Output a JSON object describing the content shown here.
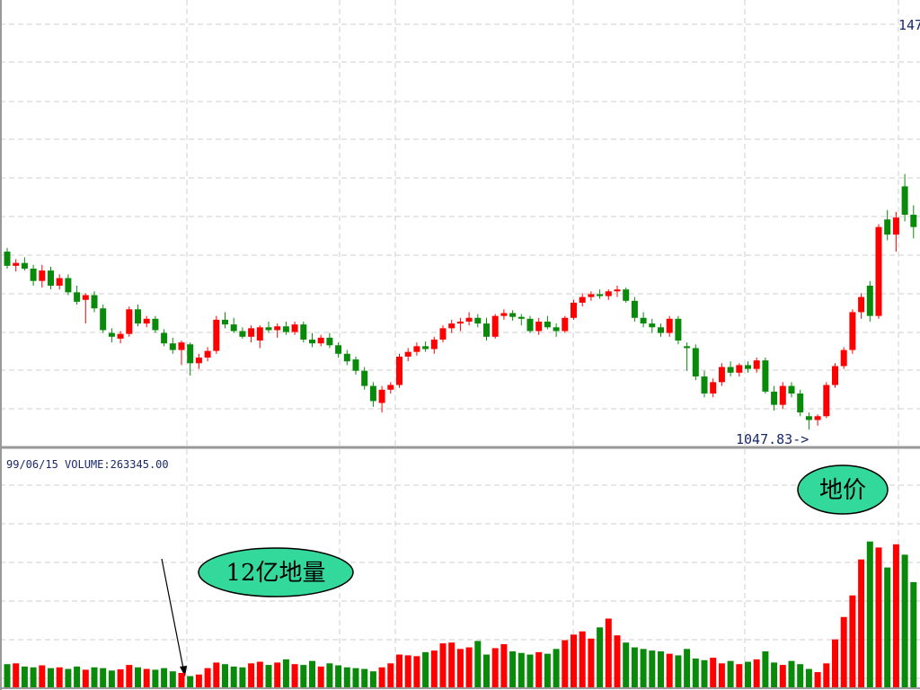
{
  "chart_data": {
    "type": "candlestick",
    "top_label": "147",
    "low_label": "1047.83->",
    "status": "99/06/15 VOLUME:263345.00",
    "annotations": [
      "地价",
      "12亿地量"
    ],
    "up_color": "#ff0000",
    "down_color": "#0a8a0a",
    "ylim": [
      1029,
      1502
    ],
    "vlim": [
      0,
      596000
    ],
    "ohlc": [
      [
        1236,
        1240,
        1218,
        1221
      ],
      [
        1221,
        1228,
        1215,
        1224
      ],
      [
        1224,
        1230,
        1216,
        1218
      ],
      [
        1218,
        1222,
        1200,
        1205
      ],
      [
        1205,
        1222,
        1198,
        1216
      ],
      [
        1216,
        1220,
        1196,
        1200
      ],
      [
        1200,
        1212,
        1196,
        1208
      ],
      [
        1208,
        1212,
        1190,
        1193
      ],
      [
        1193,
        1200,
        1180,
        1183
      ],
      [
        1185,
        1192,
        1160,
        1190
      ],
      [
        1190,
        1194,
        1172,
        1176
      ],
      [
        1176,
        1180,
        1150,
        1153
      ],
      [
        1150,
        1155,
        1140,
        1146
      ],
      [
        1144,
        1152,
        1139,
        1149
      ],
      [
        1149,
        1178,
        1146,
        1175
      ],
      [
        1175,
        1180,
        1157,
        1160
      ],
      [
        1160,
        1168,
        1156,
        1165
      ],
      [
        1165,
        1168,
        1150,
        1153
      ],
      [
        1150,
        1154,
        1136,
        1139
      ],
      [
        1139,
        1145,
        1128,
        1132
      ],
      [
        1132,
        1142,
        1116,
        1140
      ],
      [
        1138,
        1140,
        1105,
        1118
      ],
      [
        1118,
        1128,
        1112,
        1124
      ],
      [
        1124,
        1135,
        1120,
        1131
      ],
      [
        1131,
        1168,
        1128,
        1164
      ],
      [
        1164,
        1172,
        1155,
        1159
      ],
      [
        1159,
        1166,
        1150,
        1152
      ],
      [
        1152,
        1156,
        1144,
        1146
      ],
      [
        1146,
        1158,
        1140,
        1155
      ],
      [
        1142,
        1158,
        1134,
        1156
      ],
      [
        1156,
        1162,
        1150,
        1153
      ],
      [
        1153,
        1160,
        1145,
        1157
      ],
      [
        1157,
        1162,
        1148,
        1151
      ],
      [
        1151,
        1162,
        1148,
        1159
      ],
      [
        1159,
        1162,
        1140,
        1143
      ],
      [
        1143,
        1150,
        1135,
        1139
      ],
      [
        1139,
        1148,
        1136,
        1145
      ],
      [
        1145,
        1150,
        1134,
        1137
      ],
      [
        1137,
        1140,
        1124,
        1128
      ],
      [
        1128,
        1132,
        1116,
        1120
      ],
      [
        1122,
        1125,
        1106,
        1110
      ],
      [
        1110,
        1114,
        1090,
        1094
      ],
      [
        1094,
        1098,
        1072,
        1078
      ],
      [
        1076,
        1094,
        1066,
        1090
      ],
      [
        1090,
        1098,
        1086,
        1095
      ],
      [
        1095,
        1128,
        1092,
        1125
      ],
      [
        1125,
        1134,
        1120,
        1130
      ],
      [
        1130,
        1140,
        1126,
        1136
      ],
      [
        1136,
        1141,
        1130,
        1133
      ],
      [
        1133,
        1146,
        1128,
        1143
      ],
      [
        1143,
        1158,
        1140,
        1155
      ],
      [
        1155,
        1164,
        1150,
        1160
      ],
      [
        1160,
        1166,
        1152,
        1162
      ],
      [
        1162,
        1172,
        1158,
        1166
      ],
      [
        1166,
        1170,
        1156,
        1160
      ],
      [
        1160,
        1166,
        1142,
        1146
      ],
      [
        1146,
        1170,
        1144,
        1168
      ],
      [
        1168,
        1175,
        1164,
        1171
      ],
      [
        1171,
        1174,
        1163,
        1167
      ],
      [
        1167,
        1170,
        1158,
        1165
      ],
      [
        1165,
        1168,
        1150,
        1152
      ],
      [
        1152,
        1166,
        1148,
        1162
      ],
      [
        1162,
        1168,
        1154,
        1156
      ],
      [
        1156,
        1160,
        1146,
        1152
      ],
      [
        1152,
        1168,
        1150,
        1166
      ],
      [
        1166,
        1185,
        1164,
        1182
      ],
      [
        1182,
        1192,
        1178,
        1188
      ],
      [
        1188,
        1194,
        1184,
        1191
      ],
      [
        1191,
        1196,
        1186,
        1189
      ],
      [
        1189,
        1196,
        1185,
        1194
      ],
      [
        1194,
        1200,
        1188,
        1196
      ],
      [
        1196,
        1198,
        1182,
        1184
      ],
      [
        1184,
        1188,
        1162,
        1166
      ],
      [
        1166,
        1172,
        1156,
        1160
      ],
      [
        1160,
        1165,
        1150,
        1156
      ],
      [
        1156,
        1160,
        1146,
        1150
      ],
      [
        1150,
        1168,
        1146,
        1165
      ],
      [
        1165,
        1168,
        1138,
        1142
      ],
      [
        1136,
        1140,
        1110,
        1134
      ],
      [
        1134,
        1138,
        1100,
        1104
      ],
      [
        1104,
        1110,
        1082,
        1086
      ],
      [
        1086,
        1102,
        1082,
        1098
      ],
      [
        1098,
        1118,
        1094,
        1114
      ],
      [
        1114,
        1120,
        1104,
        1108
      ],
      [
        1108,
        1118,
        1104,
        1116
      ],
      [
        1116,
        1120,
        1108,
        1112
      ],
      [
        1112,
        1124,
        1108,
        1121
      ],
      [
        1121,
        1124,
        1086,
        1088
      ],
      [
        1088,
        1094,
        1068,
        1074
      ],
      [
        1074,
        1098,
        1070,
        1094
      ],
      [
        1094,
        1098,
        1082,
        1086
      ],
      [
        1086,
        1090,
        1062,
        1066
      ],
      [
        1062,
        1066,
        1047.83,
        1058
      ],
      [
        1058,
        1064,
        1052,
        1062
      ],
      [
        1062,
        1098,
        1060,
        1095
      ],
      [
        1095,
        1118,
        1092,
        1115
      ],
      [
        1115,
        1135,
        1112,
        1132
      ],
      [
        1132,
        1175,
        1128,
        1172
      ],
      [
        1172,
        1192,
        1165,
        1188
      ],
      [
        1200,
        1205,
        1162,
        1168
      ],
      [
        1168,
        1265,
        1165,
        1262
      ],
      [
        1270,
        1280,
        1248,
        1254
      ],
      [
        1254,
        1278,
        1236,
        1272
      ],
      [
        1305,
        1318,
        1268,
        1275
      ],
      [
        1275,
        1285,
        1250,
        1262
      ]
    ],
    "volume": [
      58000,
      60000,
      52000,
      50000,
      55000,
      48000,
      50000,
      46000,
      52000,
      44000,
      50000,
      48000,
      42000,
      45000,
      56000,
      50000,
      46000,
      44000,
      48000,
      40000,
      36000,
      28000,
      32000,
      48000,
      62000,
      58000,
      52000,
      50000,
      60000,
      64000,
      56000,
      62000,
      70000,
      58000,
      56000,
      66000,
      52000,
      60000,
      55000,
      50000,
      48000,
      46000,
      40000,
      50000,
      60000,
      82000,
      80000,
      78000,
      88000,
      92000,
      110000,
      112000,
      96000,
      100000,
      116000,
      82000,
      98000,
      108000,
      90000,
      86000,
      82000,
      88000,
      84000,
      96000,
      118000,
      132000,
      140000,
      122000,
      150000,
      172000,
      130000,
      112000,
      100000,
      96000,
      92000,
      90000,
      84000,
      80000,
      96000,
      72000,
      68000,
      74000,
      60000,
      66000,
      58000,
      64000,
      70000,
      90000,
      62000,
      56000,
      66000,
      58000,
      46000,
      38000,
      60000,
      120000,
      176000,
      230000,
      320000,
      365000,
      350000,
      300000,
      358000,
      332000,
      263345
    ]
  }
}
